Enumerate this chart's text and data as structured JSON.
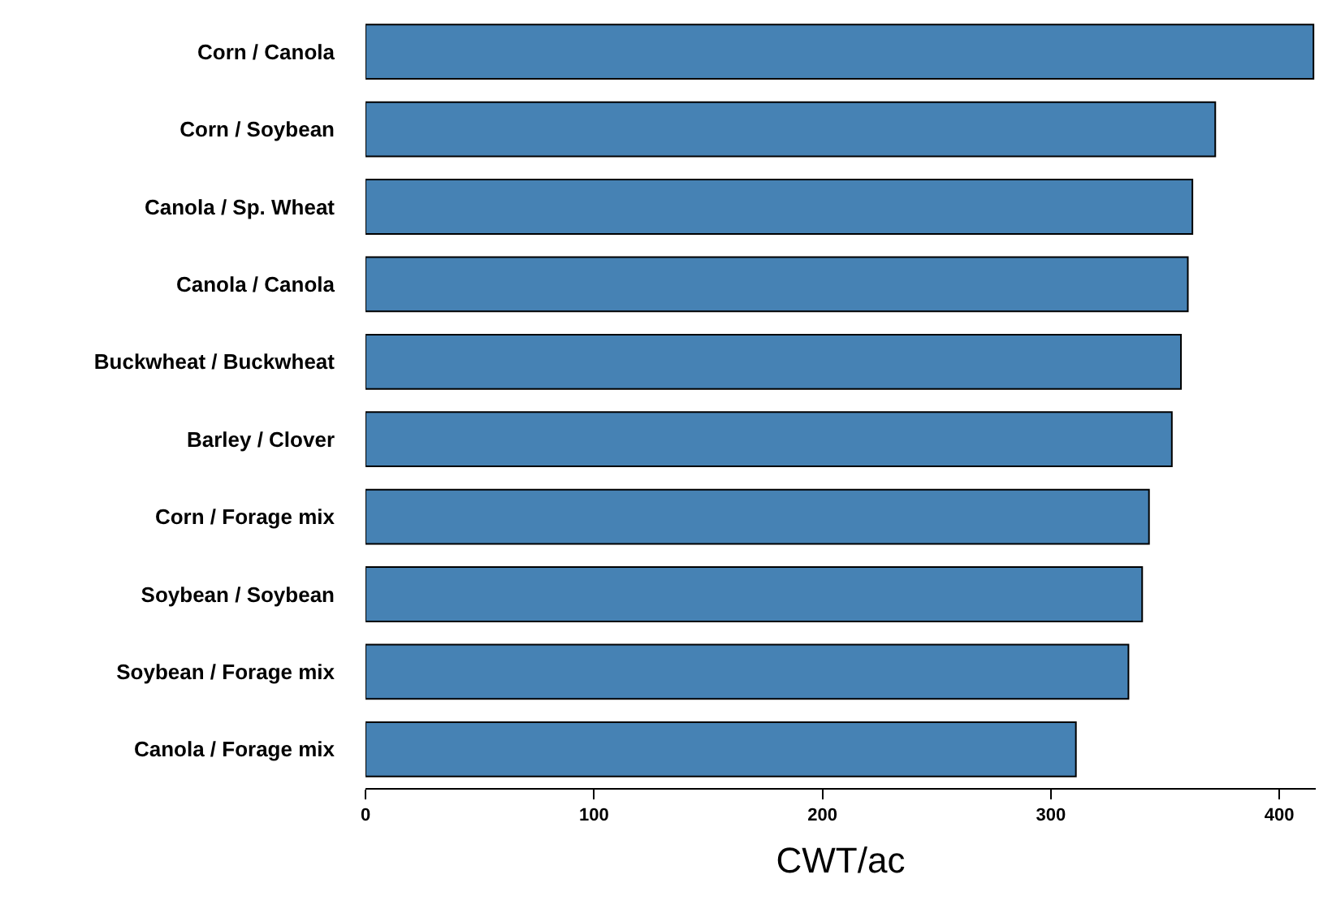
{
  "chart_data": {
    "type": "bar",
    "orientation": "horizontal",
    "xlabel": "CWT/ac",
    "categories": [
      "Corn / Canola",
      "Corn / Soybean",
      "Canola / Sp. Wheat",
      "Canola / Canola",
      "Buckwheat / Buckwheat",
      "Barley / Clover",
      "Corn / Forage mix",
      "Soybean / Soybean",
      "Soybean / Forage mix",
      "Canola / Forage mix"
    ],
    "values": [
      415,
      372,
      362,
      360,
      357,
      353,
      343,
      340,
      334,
      311
    ],
    "color": "#4682b4",
    "xlim": [
      0,
      416
    ],
    "xticks": [
      0,
      100,
      200,
      300,
      400
    ]
  }
}
